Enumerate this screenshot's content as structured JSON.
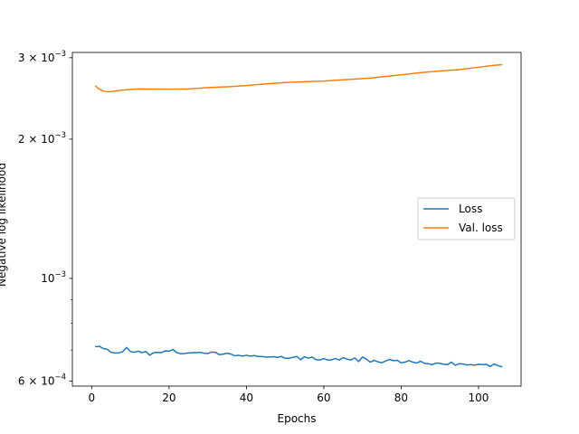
{
  "chart_data": {
    "type": "line",
    "xlabel": "Epochs",
    "ylabel": "Negative log likelihood",
    "xlim": [
      -5,
      111
    ],
    "ylim": [
      0.000585,
      0.00308
    ],
    "yscale": "log",
    "grid": false,
    "legend_position": "center-right",
    "x_ticks": [
      {
        "value": 0,
        "label": "0"
      },
      {
        "value": 20,
        "label": "20"
      },
      {
        "value": 40,
        "label": "40"
      },
      {
        "value": 60,
        "label": "60"
      },
      {
        "value": 80,
        "label": "80"
      },
      {
        "value": 100,
        "label": "100"
      }
    ],
    "y_major_ticks": [
      {
        "value": 0.0006,
        "mantissa": "6",
        "exponent": "−4"
      },
      {
        "value": 0.001,
        "mantissa": "",
        "exponent": "−3"
      },
      {
        "value": 0.002,
        "mantissa": "2",
        "exponent": "−3"
      },
      {
        "value": 0.003,
        "mantissa": "3",
        "exponent": "−3"
      }
    ],
    "y_minor_ticks": [
      0.0007,
      0.0008,
      0.0009
    ],
    "series": [
      {
        "name": "Loss",
        "color": "#1f77b4",
        "x": [
          1,
          2,
          3,
          4,
          5,
          6,
          7,
          8,
          9,
          10,
          11,
          12,
          13,
          14,
          15,
          16,
          17,
          18,
          19,
          20,
          21,
          22,
          23,
          24,
          25,
          26,
          27,
          28,
          29,
          30,
          31,
          32,
          33,
          34,
          35,
          36,
          37,
          38,
          39,
          40,
          41,
          42,
          43,
          44,
          45,
          46,
          47,
          48,
          49,
          50,
          51,
          52,
          53,
          54,
          55,
          56,
          57,
          58,
          59,
          60,
          61,
          62,
          63,
          64,
          65,
          66,
          67,
          68,
          69,
          70,
          71,
          72,
          73,
          74,
          75,
          76,
          77,
          78,
          79,
          80,
          81,
          82,
          83,
          84,
          85,
          86,
          87,
          88,
          89,
          90,
          91,
          92,
          93,
          94,
          95,
          96,
          97,
          98,
          99,
          100,
          101,
          102,
          103,
          104,
          105,
          106
        ],
        "y": [
          0.000712,
          0.000713,
          0.000705,
          0.000703,
          0.000692,
          0.00069,
          0.00069,
          0.000694,
          0.000709,
          0.000695,
          0.000692,
          0.000696,
          0.000691,
          0.000695,
          0.000682,
          0.000691,
          0.000692,
          0.000691,
          0.000697,
          0.000696,
          0.000702,
          0.000691,
          0.000687,
          0.000688,
          0.00069,
          0.000691,
          0.000691,
          0.000692,
          0.000689,
          0.000688,
          0.000693,
          0.000692,
          0.000684,
          0.000686,
          0.000689,
          0.000686,
          0.00068,
          0.000682,
          0.000679,
          0.000682,
          0.000679,
          0.000681,
          0.000678,
          0.000678,
          0.000676,
          0.000676,
          0.000677,
          0.000675,
          0.000678,
          0.000672,
          0.000672,
          0.000675,
          0.000678,
          0.000667,
          0.000677,
          0.000672,
          0.000676,
          0.000667,
          0.000666,
          0.000671,
          0.000666,
          0.000667,
          0.000671,
          0.000666,
          0.000674,
          0.000669,
          0.000666,
          0.000673,
          0.000661,
          0.000676,
          0.000669,
          0.000659,
          0.000665,
          0.00066,
          0.000657,
          0.000663,
          0.000668,
          0.000664,
          0.000665,
          0.000657,
          0.000659,
          0.000664,
          0.000659,
          0.000656,
          0.000662,
          0.000655,
          0.000654,
          0.000651,
          0.000656,
          0.000655,
          0.000652,
          0.000651,
          0.000659,
          0.000649,
          0.000654,
          0.000653,
          0.00065,
          0.000651,
          0.000649,
          0.000652,
          0.000651,
          0.000652,
          0.000645,
          0.000653,
          0.000648,
          0.000644
        ]
      },
      {
        "name": "Val. loss",
        "color": "#ff7f0e",
        "x": [
          1,
          2,
          3,
          4,
          5,
          6,
          8,
          10,
          12,
          15,
          20,
          25,
          30,
          35,
          40,
          45,
          50,
          55,
          60,
          65,
          70,
          72,
          75,
          80,
          85,
          90,
          95,
          100,
          104,
          106
        ],
        "y": [
          0.002605,
          0.002565,
          0.00254,
          0.002533,
          0.002534,
          0.002541,
          0.002554,
          0.002563,
          0.002568,
          0.002567,
          0.002565,
          0.002568,
          0.002585,
          0.002595,
          0.002612,
          0.002634,
          0.002652,
          0.002662,
          0.002672,
          0.002688,
          0.002705,
          0.002711,
          0.002728,
          0.002755,
          0.002785,
          0.002808,
          0.002828,
          0.002862,
          0.002888,
          0.002898
        ]
      }
    ]
  }
}
